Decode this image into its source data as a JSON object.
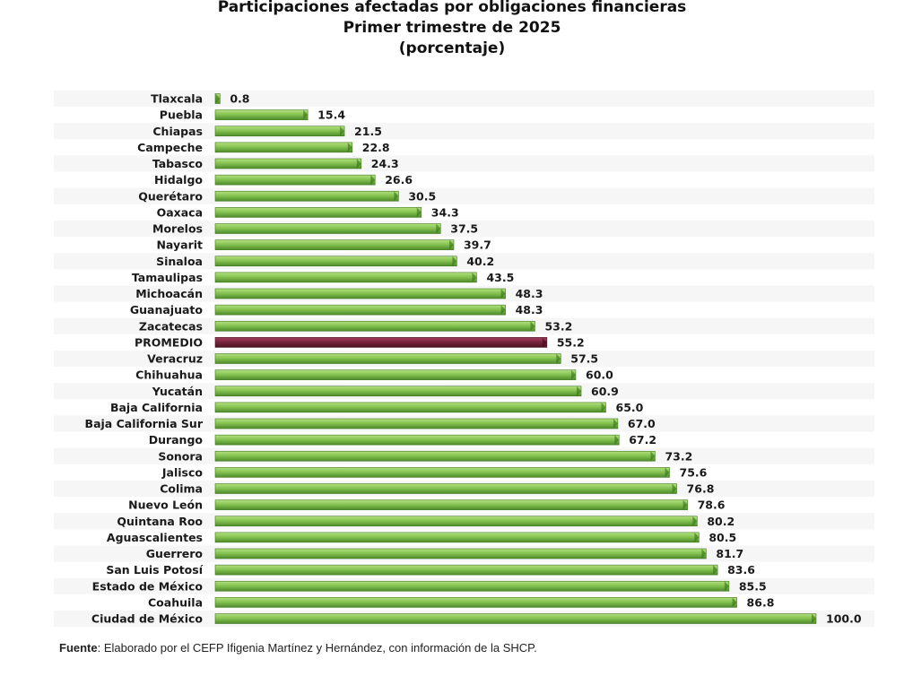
{
  "header": {
    "title_line1": "Participaciones afectadas por obligaciones financieras",
    "title_line2": "Primer trimestre de 2025",
    "title_line3": "(porcentaje)"
  },
  "footer": {
    "source_label": "Fuente",
    "source_text": ":  Elaborado por el CEFP Ifigenia Martínez y Hernández, con información de la SHCP."
  },
  "colors": {
    "bar": "#7dbb4a",
    "bar_light": "#a8d870",
    "bar_dark": "#4f8a2a",
    "highlight": "#6e1f33",
    "highlight_light": "#9a3a55"
  },
  "chart_data": {
    "type": "bar",
    "orientation": "horizontal",
    "title": "Participaciones afectadas por obligaciones financieras",
    "subtitle": "Primer trimestre de 2025",
    "unit_label": "(porcentaje)",
    "xlim": [
      0,
      100
    ],
    "grid": false,
    "highlight_category": "PROMEDIO",
    "categories": [
      "Tlaxcala",
      "Puebla",
      "Chiapas",
      "Campeche",
      "Tabasco",
      "Hidalgo",
      "Querétaro",
      "Oaxaca",
      "Morelos",
      "Nayarit",
      "Sinaloa",
      "Tamaulipas",
      "Michoacán",
      "Guanajuato",
      "Zacatecas",
      "PROMEDIO",
      "Veracruz",
      "Chihuahua",
      "Yucatán",
      "Baja California",
      "Baja California Sur",
      "Durango",
      "Sonora",
      "Jalisco",
      "Colima",
      "Nuevo León",
      "Quintana Roo",
      "Aguascalientes",
      "Guerrero",
      "San Luis Potosí",
      "Estado de México",
      "Coahuila",
      "Ciudad de México"
    ],
    "values": [
      0.8,
      15.4,
      21.5,
      22.8,
      24.3,
      26.6,
      30.5,
      34.3,
      37.5,
      39.7,
      40.2,
      43.5,
      48.3,
      48.3,
      53.2,
      55.2,
      57.5,
      60.0,
      60.9,
      65.0,
      67.0,
      67.2,
      73.2,
      75.6,
      76.8,
      78.6,
      80.2,
      80.5,
      81.7,
      83.6,
      85.5,
      86.8,
      100.0
    ],
    "value_labels": [
      "0.8",
      "15.4",
      "21.5",
      "22.8",
      "24.3",
      "26.6",
      "30.5",
      "34.3",
      "37.5",
      "39.7",
      "40.2",
      "43.5",
      "48.3",
      "48.3",
      "53.2",
      "55.2",
      "57.5",
      "60.0",
      "60.9",
      "65.0",
      "67.0",
      "67.2",
      "73.2",
      "75.6",
      "76.8",
      "78.6",
      "80.2",
      "80.5",
      "81.7",
      "83.6",
      "85.5",
      "86.8",
      "100.0"
    ]
  }
}
